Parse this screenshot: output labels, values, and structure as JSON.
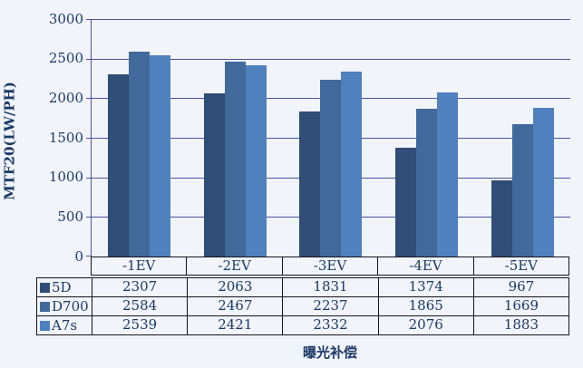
{
  "page": {
    "background_color": "#F1F4FB",
    "text_color": "#1B3966",
    "gridline_color": "#4C529E",
    "table_border_color": "#15151F"
  },
  "chart_data": {
    "type": "bar",
    "title": "",
    "categories": [
      "-1EV",
      "-2EV",
      "-3EV",
      "-4EV",
      "-5EV"
    ],
    "series": [
      {
        "name": "5D",
        "color": "#2F4D76",
        "values": [
          2307,
          2063,
          1831,
          1374,
          967
        ]
      },
      {
        "name": "D700",
        "color": "#41699B",
        "values": [
          2584,
          2467,
          2237,
          1865,
          1669
        ]
      },
      {
        "name": "A7s",
        "color": "#4E81BD",
        "values": [
          2539,
          2421,
          2332,
          2076,
          1883
        ]
      }
    ],
    "xlabel": "曝光补偿",
    "ylabel": "MTF20(LW/PH)",
    "ylim": [
      0,
      3000
    ],
    "yticks": [
      3000,
      2500,
      2000,
      1500,
      1000,
      500,
      0
    ],
    "grid": true,
    "legend_position": "table-left",
    "data_table_shown": true
  }
}
